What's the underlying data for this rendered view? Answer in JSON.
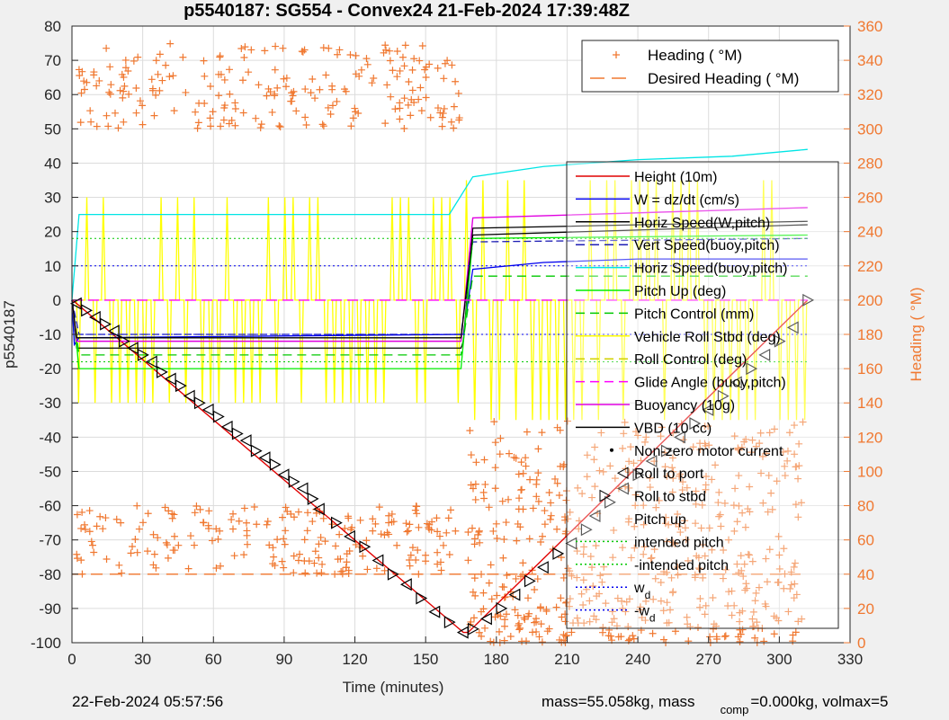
{
  "chart_data": {
    "type": "line",
    "title": "p5540187: SG554 - Convex24 21-Feb-2024 17:39:48Z",
    "xlabel": "Time (minutes)",
    "ylabel": "p5540187",
    "y2label": "Heading (  °M)",
    "xlim": [
      0,
      330
    ],
    "ylim": [
      -100,
      80
    ],
    "y2lim": [
      0,
      360
    ],
    "xticks": [
      0,
      30,
      60,
      90,
      120,
      150,
      180,
      210,
      240,
      270,
      300,
      330
    ],
    "yticks": [
      -100,
      -90,
      -80,
      -70,
      -60,
      -50,
      -40,
      -30,
      -20,
      -10,
      0,
      10,
      20,
      30,
      40,
      50,
      60,
      70,
      80
    ],
    "y2ticks": [
      0,
      20,
      40,
      60,
      80,
      100,
      120,
      140,
      160,
      180,
      200,
      220,
      240,
      260,
      280,
      300,
      320,
      340,
      360
    ],
    "grid": true,
    "colors": {
      "height": "#e00000",
      "w": "#0000ee",
      "horiz_speed": "#000000",
      "vert_speed_buoy": "#1e1eb4",
      "horiz_speed_buoy": "#00e5e5",
      "pitch_up": "#00ee00",
      "pitch_control": "#00c800",
      "roll": "#ffff00",
      "roll_control": "#d2d200",
      "glide_angle": "#ff00ff",
      "buoyancy": "#e000e0",
      "vbd": "#000000",
      "heading": "#f07830",
      "grid": "#dcdcdc"
    },
    "legend_right": {
      "placement": "top-right",
      "entries": [
        {
          "label": "Heading (  °M)",
          "marker": "plus",
          "color": "#f07830"
        },
        {
          "label": "Desired Heading (    °M)",
          "marker": "dash",
          "color": "#f07830"
        }
      ]
    },
    "legend_left": {
      "placement": "right",
      "entries": [
        {
          "label": "Height (10m)",
          "color": "#e00000",
          "style": "solid"
        },
        {
          "label": "W = dz/dt (cm/s)",
          "color": "#0000ee",
          "style": "solid"
        },
        {
          "label": "Horiz Speed(W,pitch)",
          "color": "#000000",
          "style": "solid"
        },
        {
          "label": "Vert Speed(buoy,pitch)",
          "color": "#1e1eb4",
          "style": "dash"
        },
        {
          "label": "Horiz Speed(buoy,pitch)",
          "color": "#00e5e5",
          "style": "solid"
        },
        {
          "label": "Pitch Up (deg)",
          "color": "#00ee00",
          "style": "solid"
        },
        {
          "label": "Pitch Control (mm)",
          "color": "#00c800",
          "style": "dash"
        },
        {
          "label": "Vehicle Roll Stbd (deg)",
          "color": "#ffff00",
          "style": "solid"
        },
        {
          "label": "Roll Control (deg)",
          "color": "#d2d200",
          "style": "dash"
        },
        {
          "label": "Glide Angle (buoy,pitch)",
          "color": "#ff00ff",
          "style": "dash"
        },
        {
          "label": "Buoyancy (10g)",
          "color": "#e000e0",
          "style": "solid"
        },
        {
          "label": "VBD (10 cc)",
          "color": "#000000",
          "style": "solid"
        },
        {
          "label": "Non-zero motor current",
          "color": "#000000",
          "style": "dot"
        },
        {
          "label": "Roll to port",
          "color": "#000000",
          "style": "tri-left"
        },
        {
          "label": "Roll to stbd",
          "color": "#000000",
          "style": "tri-right"
        },
        {
          "label": "Pitch up",
          "color": "#000000",
          "style": "tri-up"
        },
        {
          "label": "intended pitch",
          "color": "#00c800",
          "style": "dot-line"
        },
        {
          "label": "-intended pitch",
          "color": "#00c800",
          "style": "dot-line"
        },
        {
          "label": "w",
          "sub": "d",
          "color": "#0000ee",
          "style": "dot-line"
        },
        {
          "label": "-w",
          "sub": "d",
          "color": "#0000ee",
          "style": "dot-line"
        }
      ]
    },
    "series": [
      {
        "name": "Height (10m)",
        "key": "height",
        "x": [
          0,
          2,
          166,
          168,
          312
        ],
        "y": [
          0,
          -1,
          -97,
          -97,
          0
        ]
      },
      {
        "name": "W = dz/dt (cm/s)",
        "key": "w",
        "x": [
          0,
          1,
          3,
          166,
          170,
          200,
          240,
          280,
          312
        ],
        "y": [
          0,
          -13,
          -11,
          -10,
          9,
          11,
          12,
          12,
          12
        ]
      },
      {
        "name": "Horiz Speed(W,pitch)",
        "key": "horiz_speed",
        "x": [
          0,
          2,
          165,
          166,
          170,
          312
        ],
        "y": [
          0,
          -14,
          -14,
          -12,
          21,
          23
        ]
      },
      {
        "name": "Vert Speed(buoy,pitch)",
        "key": "vert_speed_buoy",
        "x": [
          0,
          3,
          165,
          170,
          312
        ],
        "y": [
          0,
          -10,
          -10,
          17,
          18
        ]
      },
      {
        "name": "Horiz Speed(buoy,pitch)",
        "key": "horiz_speed_buoy",
        "x": [
          0,
          3,
          160,
          170,
          200,
          240,
          280,
          312
        ],
        "y": [
          0,
          25,
          25,
          36,
          39,
          41,
          42,
          44
        ]
      },
      {
        "name": "Pitch Up (deg)",
        "key": "pitch_up",
        "x": [
          0,
          3,
          165,
          170,
          312
        ],
        "y": [
          0,
          -20,
          -20,
          18,
          19
        ]
      },
      {
        "name": "Pitch Control (mm)",
        "key": "pitch_control",
        "x": [
          0,
          3,
          165,
          170,
          312
        ],
        "y": [
          0,
          -16,
          -16,
          7,
          7
        ]
      },
      {
        "name": "Buoyancy (10g)",
        "key": "buoyancy",
        "x": [
          0,
          2,
          165,
          170,
          312
        ],
        "y": [
          0,
          -12,
          -12,
          24,
          27
        ]
      },
      {
        "name": "VBD (10 cc)",
        "key": "vbd",
        "x": [
          0,
          2,
          165,
          170,
          312
        ],
        "y": [
          0,
          -11,
          -11,
          19,
          22
        ]
      },
      {
        "name": "Glide Angle (buoy,pitch)",
        "key": "glide_angle",
        "x": [
          0,
          312
        ],
        "y": [
          0,
          0
        ]
      },
      {
        "name": "intended pitch",
        "key": "intended_pitch",
        "x": [
          0,
          312
        ],
        "y": [
          18,
          18
        ]
      },
      {
        "name": "-intended pitch",
        "key": "neg_intended_pitch",
        "x": [
          0,
          312
        ],
        "y": [
          -18,
          -18
        ]
      },
      {
        "name": "w",
        "key": "wd",
        "x": [
          0,
          312
        ],
        "y": [
          10,
          10
        ]
      },
      {
        "name": "-w",
        "key": "neg_wd",
        "x": [
          0,
          312
        ],
        "y": [
          -10,
          -10
        ]
      }
    ],
    "roll_markers": {
      "x": [
        2,
        6,
        10,
        14,
        18,
        22,
        26,
        30,
        34,
        38,
        42,
        46,
        50,
        54,
        58,
        62,
        66,
        70,
        74,
        78,
        82,
        86,
        90,
        94,
        98,
        102,
        105,
        112,
        118,
        124,
        130,
        136,
        142,
        148,
        154,
        160,
        166,
        170,
        176,
        182,
        188,
        194,
        200,
        206,
        212,
        218,
        222,
        228,
        234,
        240,
        246,
        252,
        258,
        264,
        270,
        276,
        282,
        288,
        294,
        300,
        306,
        312
      ],
      "y": [
        -1,
        -3,
        -5,
        -7,
        -9,
        -12,
        -14,
        -16,
        -18,
        -21,
        -23,
        -25,
        -28,
        -30,
        -32,
        -34,
        -37,
        -39,
        -41,
        -44,
        -46,
        -48,
        -51,
        -53,
        -55,
        -58,
        -61,
        -65,
        -69,
        -72,
        -76,
        -80,
        -83,
        -87,
        -91,
        -94,
        -97,
        -96,
        -93,
        -90,
        -86,
        -82,
        -78,
        -74,
        -71,
        -67,
        -63,
        -59,
        -55,
        -51,
        -47,
        -44,
        -40,
        -36,
        -32,
        -28,
        -24,
        -20,
        -16,
        -12,
        -8,
        0
      ]
    },
    "heading_summary": {
      "descent_cluster": [
        40,
        350
      ],
      "ascent_cluster": [
        0,
        130
      ],
      "desired_heading": 40
    },
    "footer_left": "22-Feb-2024 05:57:56",
    "footer_right": "mass=55.058kg, mass",
    "footer_sub": "comp",
    "footer_tail": "=0.000kg, volmax=5"
  }
}
